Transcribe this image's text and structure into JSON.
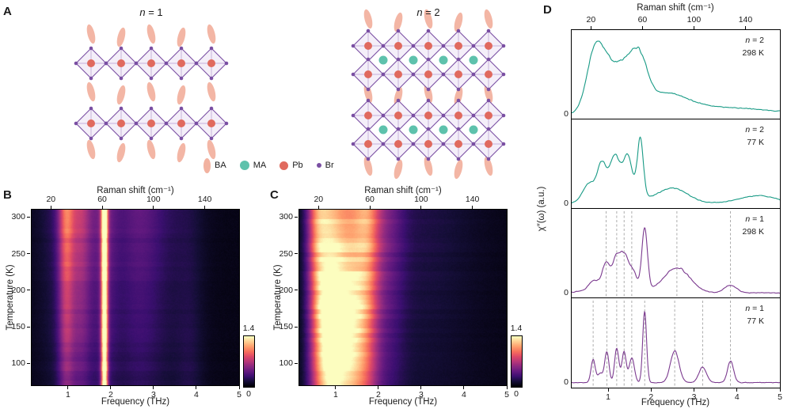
{
  "figure_bg": "#ffffff",
  "colormap_magma": [
    [
      0.0,
      "#000004"
    ],
    [
      0.1,
      "#140e36"
    ],
    [
      0.2,
      "#3b0f70"
    ],
    [
      0.3,
      "#641a80"
    ],
    [
      0.4,
      "#8c2981"
    ],
    [
      0.5,
      "#b73779"
    ],
    [
      0.6,
      "#de4968"
    ],
    [
      0.7,
      "#f7705c"
    ],
    [
      0.8,
      "#fe9f6d"
    ],
    [
      0.9,
      "#fecf92"
    ],
    [
      1.0,
      "#fcfdbf"
    ]
  ],
  "panelA": {
    "label": "A",
    "structures": [
      {
        "title_var": "n",
        "title_rest": " = 1",
        "layers": 2,
        "rows_per_layer": 1,
        "columns": 5,
        "has_ma": false
      },
      {
        "title_var": "n",
        "title_rest": " = 2",
        "layers": 2,
        "rows_per_layer": 2,
        "columns": 5,
        "has_ma": true
      }
    ],
    "legend": [
      {
        "label": "BA",
        "type": "ba"
      },
      {
        "label": "MA",
        "type": "ma"
      },
      {
        "label": "Pb",
        "type": "pb"
      },
      {
        "label": "Br",
        "type": "br"
      }
    ],
    "colors": {
      "ba": "#f2b2a0",
      "ma": "#5ec2ac",
      "pb": "#e06a5e",
      "br": "#7a4fa3",
      "oct_stroke": "#7a4fa3",
      "oct_fill": "#f4eff9",
      "oct_inner": "#b79bd1"
    }
  },
  "panelB": {
    "label": "B"
  },
  "panelC": {
    "label": "C"
  },
  "panelD": {
    "label": "D"
  },
  "chart_data": [
    {
      "id": "panel-B-heatmap",
      "type": "heatmap",
      "sample": "n = 1",
      "top_axis_label": "Raman shift (cm⁻¹)",
      "xlabel": "Frequency (THz)",
      "ylabel": "Temperature (K)",
      "xlim": [
        0.15,
        5.0
      ],
      "ylim": [
        70,
        310
      ],
      "xticks": [
        1,
        2,
        3,
        4,
        5
      ],
      "yticks": [
        100,
        150,
        200,
        250,
        300
      ],
      "top_ticks_cm": [
        20,
        60,
        100,
        140
      ],
      "colorbar": {
        "min": 0,
        "max": 1.4,
        "min_label": "0",
        "max_label": "1.4"
      },
      "vmax": 1.4,
      "background": 0.05,
      "seed": 11,
      "peaks": [
        {
          "c": 1.85,
          "w": 0.055,
          "a": 1.35,
          "tmod": "none"
        },
        {
          "c": 1.85,
          "w": 0.22,
          "a": 0.25,
          "tmod": "high"
        },
        {
          "c": 0.95,
          "w": 0.13,
          "a": 0.5,
          "tmod": "high"
        },
        {
          "c": 1.3,
          "w": 0.18,
          "a": 0.33,
          "tmod": "high"
        },
        {
          "c": 1.05,
          "w": 0.45,
          "a": 0.2,
          "tmod": "high"
        },
        {
          "c": 2.6,
          "w": 0.4,
          "a": 0.22,
          "tmod": "high"
        },
        {
          "c": 3.3,
          "w": 0.55,
          "a": 0.1,
          "tmod": "high"
        },
        {
          "c": 3.85,
          "w": 0.22,
          "a": 0.07,
          "tmod": "low"
        }
      ]
    },
    {
      "id": "panel-C-heatmap",
      "type": "heatmap",
      "sample": "n = 2",
      "top_axis_label": "Raman shift (cm⁻¹)",
      "xlabel": "Frequency (THz)",
      "ylabel": "Temperature (K)",
      "xlim": [
        0.15,
        5.0
      ],
      "ylim": [
        70,
        310
      ],
      "xticks": [
        1,
        2,
        3,
        4,
        5
      ],
      "yticks": [
        100,
        150,
        200,
        250,
        300
      ],
      "top_ticks_cm": [
        20,
        60,
        100,
        140
      ],
      "colorbar": {
        "min": 0,
        "max": 1.4,
        "min_label": "0",
        "max_label": "1.4"
      },
      "vmax": 1.4,
      "background": 0.05,
      "seed": 23,
      "peaks": [
        {
          "c": 0.55,
          "w": 0.18,
          "a": 0.6,
          "tmod": "high"
        },
        {
          "c": 0.85,
          "w": 0.22,
          "a": 0.9,
          "tmod": "mid"
        },
        {
          "c": 1.3,
          "w": 0.3,
          "a": 1.0,
          "tmod": "mid"
        },
        {
          "c": 1.75,
          "w": 0.22,
          "a": 0.55,
          "tmod": "high"
        },
        {
          "c": 2.2,
          "w": 0.3,
          "a": 0.25,
          "tmod": "high"
        },
        {
          "c": 3.0,
          "w": 0.9,
          "a": 0.1,
          "tmod": "high"
        }
      ]
    },
    {
      "id": "panel-D-spectra",
      "type": "line",
      "top_axis_label": "Raman shift (cm⁻¹)",
      "xlabel": "Frequency (THz)",
      "ylabel": "χ″(ω) (a.u.)",
      "xlim": [
        0.15,
        5.0
      ],
      "xticks": [
        1,
        2,
        3,
        4,
        5
      ],
      "top_ticks_cm": [
        20,
        60,
        100,
        140
      ],
      "ytick_zero": "0",
      "guide_color": "#999999",
      "series": [
        {
          "sample_var": "n",
          "sample_rest": " = 2",
          "temperature": "298 K",
          "color": "#189a85",
          "seed": 5,
          "baseline": 0.02,
          "peaks": [
            {
              "c": 0.7,
              "w": 0.2,
              "a": 0.8
            },
            {
              "c": 1.05,
              "w": 0.22,
              "a": 0.45
            },
            {
              "c": 1.45,
              "w": 0.22,
              "a": 0.5
            },
            {
              "c": 1.75,
              "w": 0.18,
              "a": 0.48
            },
            {
              "c": 2.3,
              "w": 0.5,
              "a": 0.22
            },
            {
              "c": 3.4,
              "w": 1.3,
              "a": 0.1
            }
          ],
          "guides": []
        },
        {
          "sample_var": "n",
          "sample_rest": " = 2",
          "temperature": "77 K",
          "color": "#189a85",
          "seed": 9,
          "baseline": 0.03,
          "peaks": [
            {
              "c": 0.55,
              "w": 0.14,
              "a": 0.22
            },
            {
              "c": 0.85,
              "w": 0.1,
              "a": 0.4
            },
            {
              "c": 1.15,
              "w": 0.11,
              "a": 0.45
            },
            {
              "c": 1.45,
              "w": 0.11,
              "a": 0.48
            },
            {
              "c": 1.75,
              "w": 0.07,
              "a": 0.75
            },
            {
              "c": 1.2,
              "w": 0.4,
              "a": 0.18
            },
            {
              "c": 2.5,
              "w": 0.35,
              "a": 0.2
            },
            {
              "c": 4.5,
              "w": 0.45,
              "a": 0.1
            }
          ],
          "guides": []
        },
        {
          "sample_var": "n",
          "sample_rest": " = 1",
          "temperature": "298 K",
          "color": "#7b3a8f",
          "seed": 13,
          "baseline": 0.03,
          "peaks": [
            {
              "c": 0.65,
              "w": 0.1,
              "a": 0.1
            },
            {
              "c": 0.95,
              "w": 0.09,
              "a": 0.28
            },
            {
              "c": 1.2,
              "w": 0.09,
              "a": 0.36
            },
            {
              "c": 1.37,
              "w": 0.08,
              "a": 0.32
            },
            {
              "c": 1.55,
              "w": 0.1,
              "a": 0.24
            },
            {
              "c": 1.15,
              "w": 0.45,
              "a": 0.12
            },
            {
              "c": 1.85,
              "w": 0.065,
              "a": 0.8
            },
            {
              "c": 2.6,
              "w": 0.3,
              "a": 0.33
            },
            {
              "c": 3.85,
              "w": 0.14,
              "a": 0.1
            }
          ],
          "guides": [
            0.95,
            1.2,
            1.37,
            1.55,
            2.6,
            3.85
          ]
        },
        {
          "sample_var": "n",
          "sample_rest": " = 1",
          "temperature": "77 K",
          "color": "#7b3a8f",
          "seed": 17,
          "baseline": 0.025,
          "peaks": [
            {
              "c": 0.65,
              "w": 0.05,
              "a": 0.3
            },
            {
              "c": 0.82,
              "w": 0.06,
              "a": 0.12
            },
            {
              "c": 0.97,
              "w": 0.05,
              "a": 0.4
            },
            {
              "c": 1.2,
              "w": 0.05,
              "a": 0.45
            },
            {
              "c": 1.37,
              "w": 0.05,
              "a": 0.4
            },
            {
              "c": 1.55,
              "w": 0.06,
              "a": 0.33
            },
            {
              "c": 1.85,
              "w": 0.045,
              "a": 0.95
            },
            {
              "c": 2.55,
              "w": 0.1,
              "a": 0.42
            },
            {
              "c": 3.2,
              "w": 0.09,
              "a": 0.2
            },
            {
              "c": 3.85,
              "w": 0.07,
              "a": 0.28
            }
          ],
          "guides": [
            0.65,
            0.97,
            1.2,
            1.37,
            1.55,
            1.85,
            2.55,
            3.2,
            3.85
          ]
        }
      ]
    }
  ]
}
